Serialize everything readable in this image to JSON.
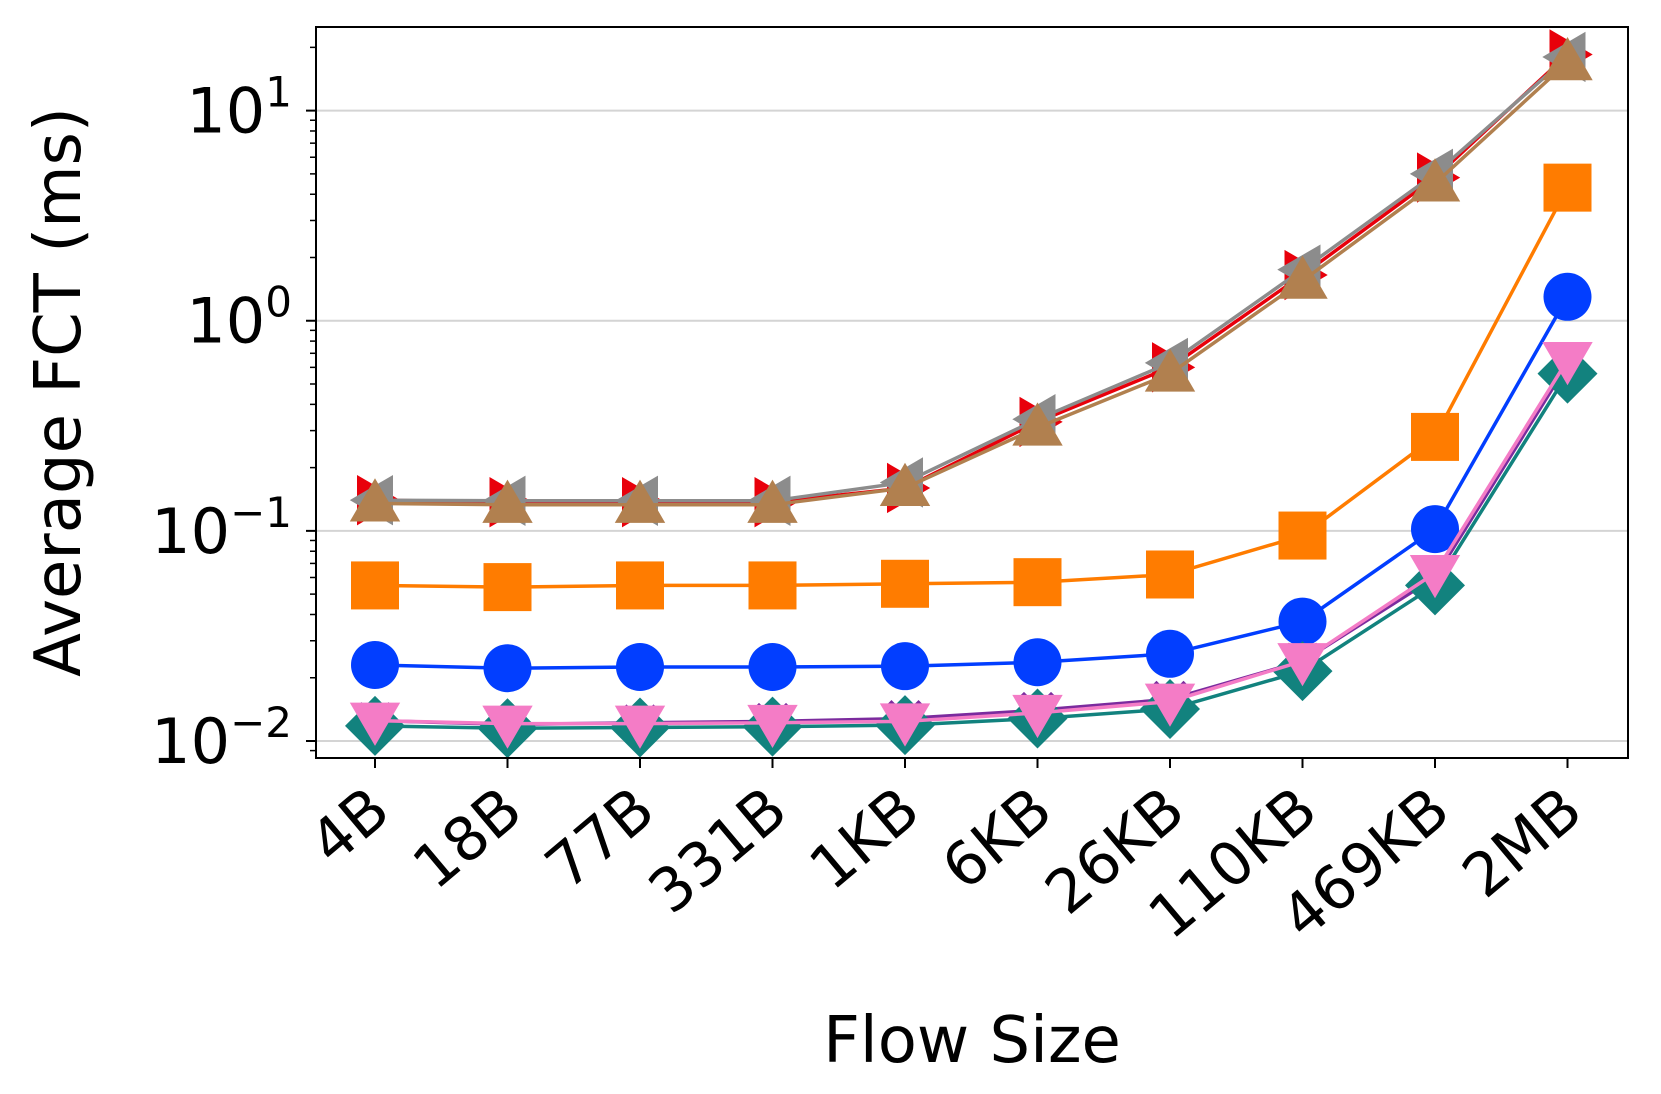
{
  "chart_data": {
    "type": "line",
    "xlabel": "Flow Size",
    "ylabel": "Average FCT (ms)",
    "yscale": "log",
    "ylim": [
      0.0083,
      25
    ],
    "grid": "horizontal-major",
    "categories": [
      "4B",
      "18B",
      "77B",
      "331B",
      "1KB",
      "6KB",
      "26KB",
      "110KB",
      "469KB",
      "2MB"
    ],
    "y_ticks": [
      {
        "value": 0.01,
        "base": "10",
        "exp": "−2"
      },
      {
        "value": 0.1,
        "base": "10",
        "exp": "−1"
      },
      {
        "value": 1,
        "base": "10",
        "exp": "0"
      },
      {
        "value": 10,
        "base": "10",
        "exp": "1"
      }
    ],
    "series": [
      {
        "color": "#e8000b",
        "marker": "tri-right",
        "values": [
          0.14,
          0.137,
          0.137,
          0.137,
          0.16,
          0.33,
          0.6,
          1.65,
          4.8,
          18.5
        ]
      },
      {
        "color": "#8c8c8c",
        "marker": "tri-left",
        "values": [
          0.14,
          0.139,
          0.139,
          0.139,
          0.17,
          0.34,
          0.63,
          1.75,
          5.0,
          18.0
        ]
      },
      {
        "color": "#b1804f",
        "marker": "tri-up",
        "values": [
          0.135,
          0.133,
          0.133,
          0.133,
          0.16,
          0.31,
          0.56,
          1.55,
          4.5,
          17.0
        ]
      },
      {
        "color": "#ff7c00",
        "marker": "square",
        "values": [
          0.055,
          0.054,
          0.055,
          0.055,
          0.056,
          0.057,
          0.062,
          0.095,
          0.28,
          4.3
        ]
      },
      {
        "color": "#023eff",
        "marker": "circle",
        "values": [
          0.023,
          0.0222,
          0.0225,
          0.0225,
          0.0227,
          0.0237,
          0.026,
          0.037,
          0.102,
          1.3
        ]
      },
      {
        "color": "#7b2b9e",
        "marker": "x",
        "values": [
          0.0125,
          0.012,
          0.0122,
          0.0124,
          0.0128,
          0.014,
          0.0158,
          0.024,
          0.06,
          0.62
        ]
      },
      {
        "color": "#12827e",
        "marker": "diamond",
        "values": [
          0.0118,
          0.0115,
          0.0116,
          0.0117,
          0.0119,
          0.0128,
          0.0142,
          0.0215,
          0.055,
          0.56
        ]
      },
      {
        "color": "#f47cc6",
        "marker": "tri-down",
        "values": [
          0.0125,
          0.0121,
          0.0121,
          0.0122,
          0.0124,
          0.0136,
          0.0154,
          0.024,
          0.063,
          0.65
        ]
      }
    ]
  }
}
